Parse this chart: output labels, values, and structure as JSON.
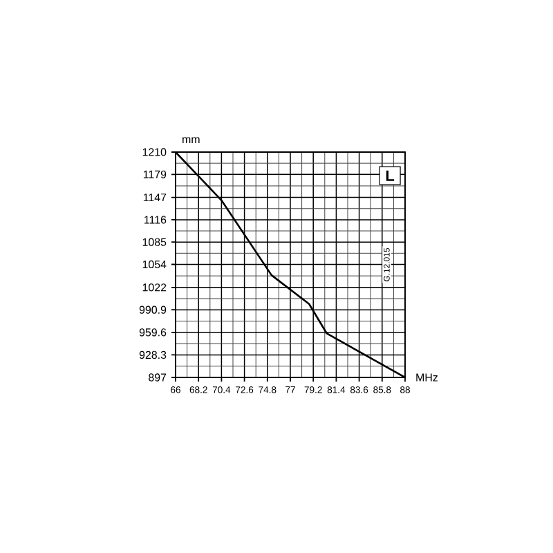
{
  "chart_data": {
    "type": "line",
    "xlabel": "MHz",
    "ylabel": "mm",
    "annotations": [
      "L",
      "G.12.015"
    ],
    "x": [
      66,
      70.4,
      75.2,
      78.8,
      80.5,
      88
    ],
    "series": [
      {
        "color": "#000000",
        "values": [
          1210,
          1143,
          1039,
          999,
          958,
          897
        ]
      }
    ],
    "xlim": [
      66,
      88
    ],
    "ylim": [
      897,
      1210
    ],
    "xticks": [
      66,
      68.2,
      70.4,
      72.6,
      74.8,
      77,
      79.2,
      81.4,
      83.6,
      85.8,
      88
    ],
    "yticks": [
      897,
      928.3,
      959.6,
      990.9,
      1022,
      1054,
      1085,
      1116,
      1147,
      1179,
      1210
    ],
    "grid": true
  }
}
